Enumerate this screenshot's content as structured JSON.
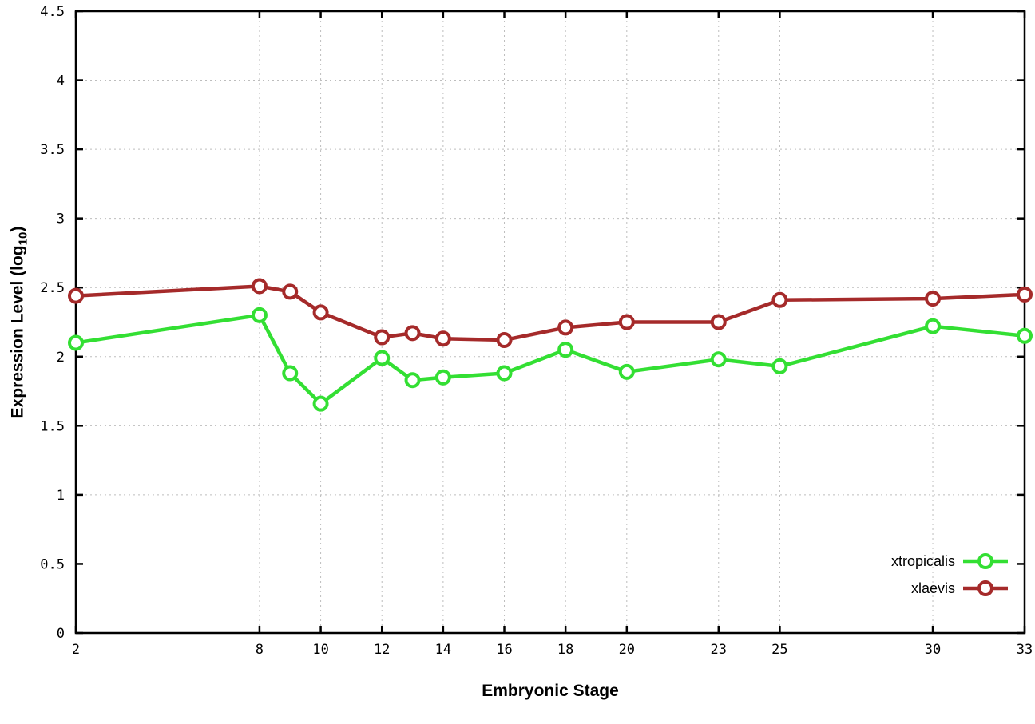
{
  "chart_data": {
    "type": "line",
    "title": "",
    "xlabel": "Embryonic Stage",
    "ylabel": "Expression Level (log10)",
    "xlim": [
      2,
      33
    ],
    "ylim": [
      0,
      4.5
    ],
    "grid": true,
    "legend_position": "bottom-right",
    "xticks": [
      2,
      8,
      10,
      12,
      14,
      16,
      18,
      20,
      23,
      25,
      30,
      33
    ],
    "yticks": [
      0,
      0.5,
      1,
      1.5,
      2,
      2.5,
      3,
      3.5,
      4,
      4.5
    ],
    "x": [
      2,
      8,
      9,
      10,
      12,
      13,
      14,
      16,
      18,
      20,
      23,
      25,
      30,
      33
    ],
    "series": [
      {
        "name": "xtropicalis",
        "color": "#33df33",
        "marker": "open-circle",
        "values": [
          2.1,
          2.3,
          1.88,
          1.66,
          1.99,
          1.83,
          1.85,
          1.88,
          2.05,
          1.89,
          1.98,
          1.93,
          2.22,
          2.15
        ]
      },
      {
        "name": "xlaevis",
        "color": "#a52a2a",
        "marker": "open-circle",
        "values": [
          2.44,
          2.51,
          2.47,
          2.32,
          2.14,
          2.17,
          2.13,
          2.12,
          2.21,
          2.25,
          2.25,
          2.41,
          2.42,
          2.45
        ]
      }
    ]
  },
  "axes": {
    "xlabel": "Embryonic Stage",
    "ylabel_pre": "Expression Level (log",
    "ylabel_sub": "10",
    "ylabel_post": ")"
  },
  "colors": {
    "background": "#ffffff",
    "axis": "#000000",
    "grid": "#bdbdbd",
    "marker_fill": "#ffffff"
  }
}
